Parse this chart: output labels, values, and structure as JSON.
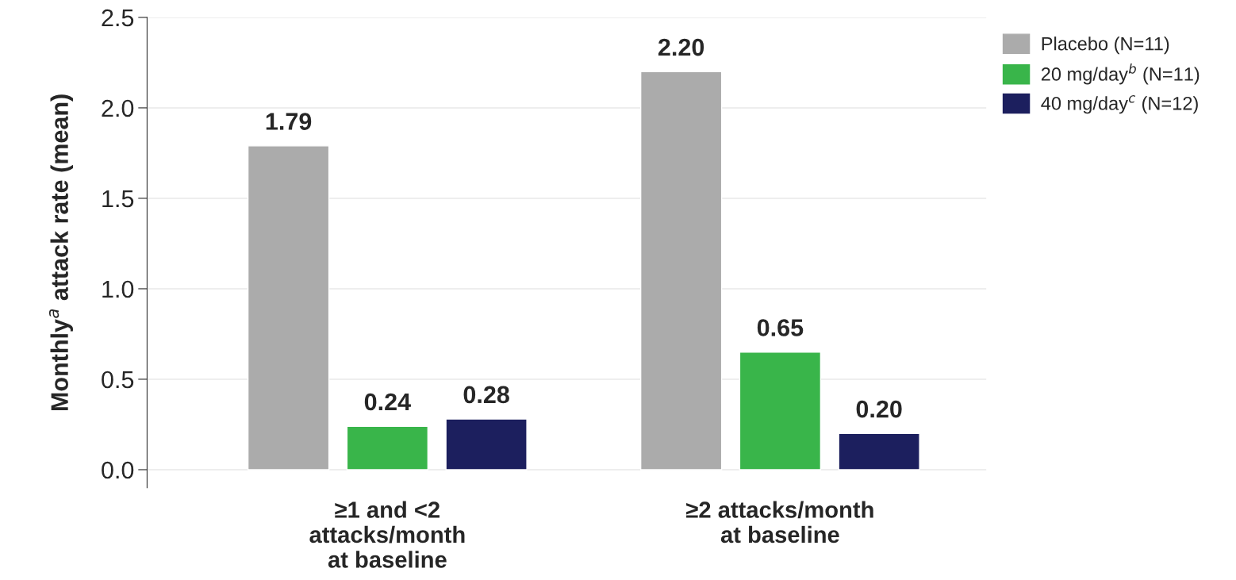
{
  "chart_data": {
    "type": "bar",
    "ylabel": "Monthly$^{a}$ attack rate (mean)",
    "categories": [
      "≥1 and <2\nattacks/month\nat baseline",
      "≥2 attacks/month\nat baseline"
    ],
    "series": [
      {
        "name": "Placebo (N=11)",
        "color": "#ababab",
        "values": [
          1.79,
          2.2
        ],
        "value_labels": [
          "1.79",
          "2.20"
        ]
      },
      {
        "name": "20 mg/day$^{b}$ (N=11)",
        "color": "#39b54a",
        "values": [
          0.24,
          0.65
        ],
        "value_labels": [
          "0.24",
          "0.65"
        ]
      },
      {
        "name": "40 mg/day$^{c}$ (N=12)",
        "color": "#1c1f5e",
        "values": [
          0.28,
          0.2
        ],
        "value_labels": [
          "0.28",
          "0.20"
        ]
      }
    ],
    "ylim": [
      -0.1,
      2.5
    ],
    "yticks": [
      {
        "value": 0,
        "label": "0.0"
      },
      0.5,
      {
        "value": 1,
        "label": "1.0"
      },
      1.5,
      {
        "value": 2,
        "label": "2.0"
      },
      2.5
    ],
    "grid": "y",
    "legend": "top right"
  }
}
